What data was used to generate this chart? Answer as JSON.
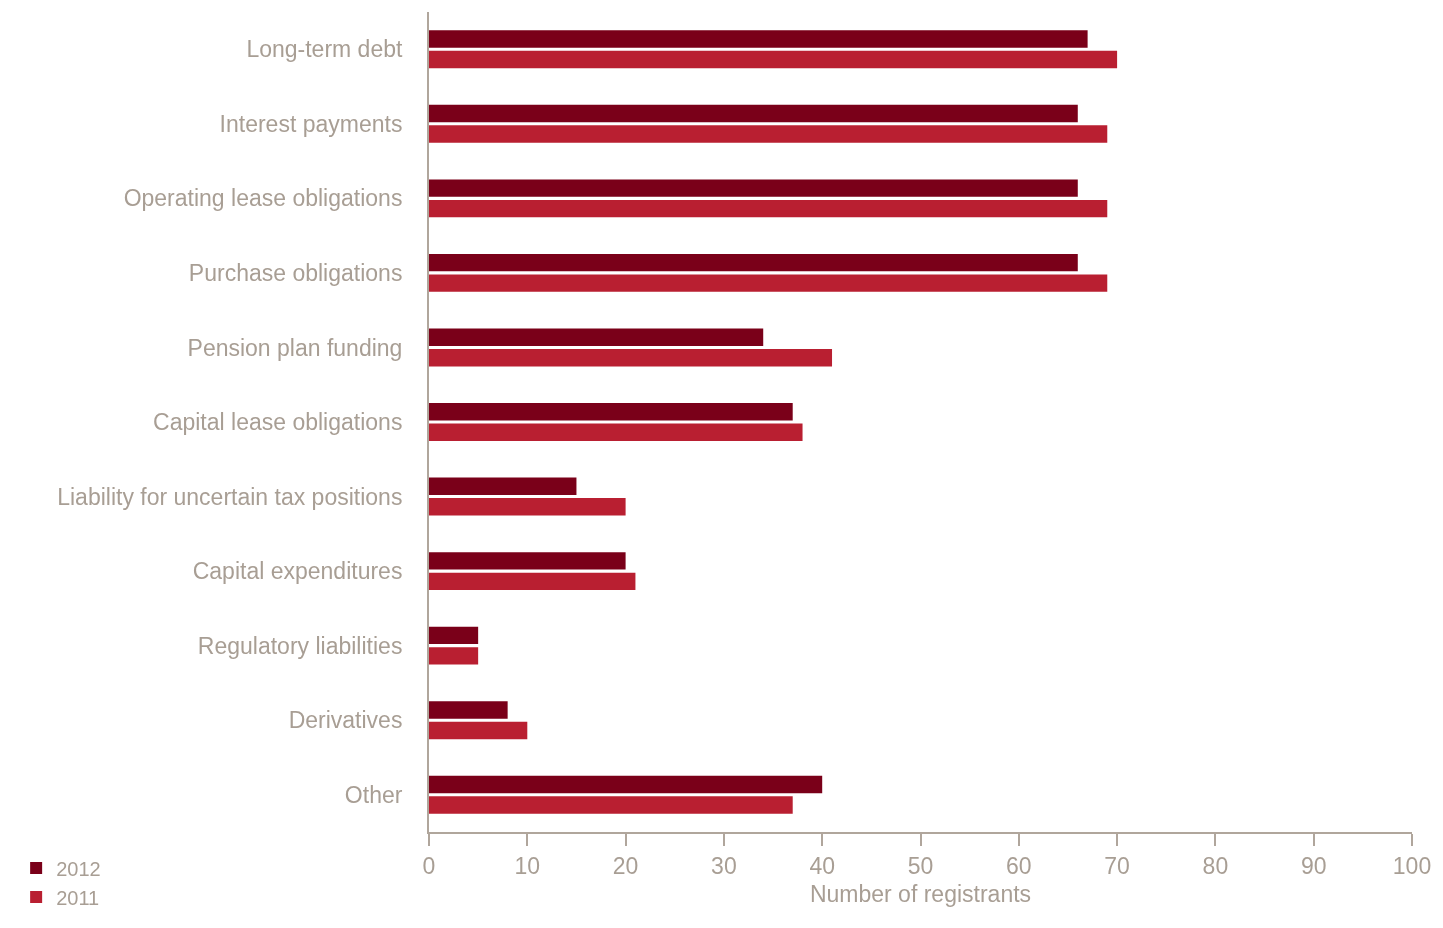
{
  "chart_data": {
    "type": "bar",
    "orientation": "horizontal",
    "xlabel": "Number of registrants",
    "categories": [
      "Long-term debt",
      "Interest payments",
      "Operating lease obligations",
      "Purchase obligations",
      "Pension plan funding",
      "Capital lease obligations",
      "Liability for uncertain tax positions",
      "Capital expenditures",
      "Regulatory liabilities",
      "Derivatives",
      "Other"
    ],
    "series": [
      {
        "name": "2012",
        "color": "#7a0019",
        "values": [
          67,
          66,
          66,
          66,
          34,
          37,
          15,
          20,
          5,
          8,
          40
        ]
      },
      {
        "name": "2011",
        "color": "#b91f31",
        "values": [
          70,
          69,
          69,
          69,
          41,
          38,
          20,
          21,
          5,
          10,
          37
        ]
      }
    ],
    "xlim": [
      0,
      100
    ],
    "xticks": [
      0,
      10,
      20,
      30,
      40,
      50,
      60,
      70,
      80,
      90,
      100
    ],
    "grid": false,
    "legend": "bottom left"
  }
}
